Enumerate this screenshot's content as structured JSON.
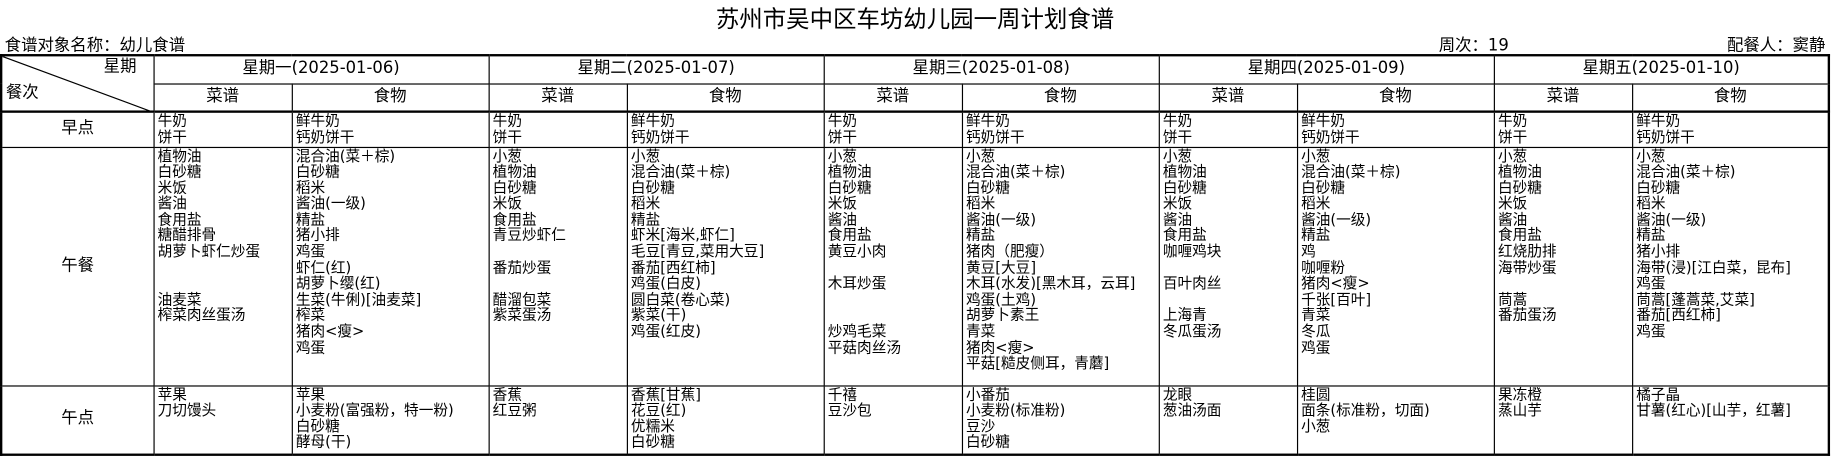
{
  "title": "苏州市吴中区车坊幼儿园一周计划食谱",
  "recipe_target": "食谱对象名称：幼儿食谱",
  "week_no": "周次：19",
  "planner": "配餐人：窦静",
  "corner": {
    "weekday": "星期",
    "meal": "餐次"
  },
  "sub_headers": {
    "menu": "菜谱",
    "food": "食物"
  },
  "meals": [
    "早点",
    "午餐",
    "午点"
  ],
  "days": [
    {
      "label": "星期一(2025-01-06)",
      "breakfast": {
        "menu": [
          "牛奶",
          "饼干"
        ],
        "food": [
          "鲜牛奶",
          "钙奶饼干"
        ]
      },
      "lunch": {
        "menu": [
          "植物油",
          "白砂糖",
          "米饭",
          "酱油",
          "食用盐",
          "糖醋排骨",
          "胡萝卜虾仁炒蛋",
          "",
          "",
          "油麦菜",
          "榨菜肉丝蛋汤"
        ],
        "food": [
          "混合油(菜＋棕)",
          "白砂糖",
          "稻米",
          "酱油(一级)",
          "精盐",
          "猪小排",
          "鸡蛋",
          "虾仁(红)",
          "胡萝卜缨(红)",
          "生菜(牛俐)[油麦菜]",
          "榨菜",
          "猪肉<瘦>",
          "鸡蛋"
        ]
      },
      "snack": {
        "menu": [
          "苹果",
          "刀切馒头"
        ],
        "food": [
          "苹果",
          "小麦粉(富强粉，特一粉)",
          "白砂糖",
          "酵母(干)"
        ]
      }
    },
    {
      "label": "星期二(2025-01-07)",
      "breakfast": {
        "menu": [
          "牛奶",
          "饼干"
        ],
        "food": [
          "鲜牛奶",
          "钙奶饼干"
        ]
      },
      "lunch": {
        "menu": [
          "小葱",
          "植物油",
          "白砂糖",
          "米饭",
          "食用盐",
          "青豆炒虾仁",
          "",
          "番茄炒蛋",
          "",
          "醋溜包菜",
          "紫菜蛋汤"
        ],
        "food": [
          "小葱",
          "混合油(菜＋棕)",
          "白砂糖",
          "稻米",
          "精盐",
          "虾米[海米,虾仁]",
          "毛豆[青豆,菜用大豆]",
          "番茄[西红柿]",
          "鸡蛋(白皮)",
          "圆白菜(卷心菜)",
          "紫菜(干)",
          "鸡蛋(红皮)"
        ]
      },
      "snack": {
        "menu": [
          "香蕉",
          "红豆粥"
        ],
        "food": [
          "香蕉[甘蕉]",
          "花豆(红)",
          "优糯米",
          "白砂糖"
        ]
      }
    },
    {
      "label": "星期三(2025-01-08)",
      "breakfast": {
        "menu": [
          "牛奶",
          "饼干"
        ],
        "food": [
          "鲜牛奶",
          "钙奶饼干"
        ]
      },
      "lunch": {
        "menu": [
          "小葱",
          "植物油",
          "白砂糖",
          "米饭",
          "酱油",
          "食用盐",
          "黄豆小肉",
          "",
          "木耳炒蛋",
          "",
          "",
          "炒鸡毛菜",
          "平菇肉丝汤"
        ],
        "food": [
          "小葱",
          "混合油(菜＋棕)",
          "白砂糖",
          "稻米",
          "酱油(一级)",
          "精盐",
          "猪肉（肥瘦）",
          "黄豆[大豆]",
          "木耳(水发)[黑木耳，云耳]",
          "鸡蛋(土鸡)",
          "胡萝卜素王",
          "青菜",
          "猪肉<瘦>",
          "平菇[糙皮侧耳，青蘑]"
        ]
      },
      "snack": {
        "menu": [
          "千禧",
          "豆沙包"
        ],
        "food": [
          "小番茄",
          "小麦粉(标准粉)",
          "豆沙",
          "白砂糖"
        ]
      }
    },
    {
      "label": "星期四(2025-01-09)",
      "breakfast": {
        "menu": [
          "牛奶",
          "饼干"
        ],
        "food": [
          "鲜牛奶",
          "钙奶饼干"
        ]
      },
      "lunch": {
        "menu": [
          "小葱",
          "植物油",
          "白砂糖",
          "米饭",
          "酱油",
          "食用盐",
          "咖喱鸡块",
          "",
          "百叶肉丝",
          "",
          "上海青",
          "冬瓜蛋汤"
        ],
        "food": [
          "小葱",
          "混合油(菜＋棕)",
          "白砂糖",
          "稻米",
          "酱油(一级)",
          "精盐",
          "鸡",
          "咖喱粉",
          "猪肉<瘦>",
          "千张[百叶]",
          "青菜",
          "冬瓜",
          "鸡蛋"
        ]
      },
      "snack": {
        "menu": [
          "龙眼",
          "葱油汤面"
        ],
        "food": [
          "桂圆",
          "面条(标准粉，切面)",
          "小葱"
        ]
      }
    },
    {
      "label": "星期五(2025-01-10)",
      "breakfast": {
        "menu": [
          "牛奶",
          "饼干"
        ],
        "food": [
          "鲜牛奶",
          "钙奶饼干"
        ]
      },
      "lunch": {
        "menu": [
          "小葱",
          "植物油",
          "白砂糖",
          "米饭",
          "酱油",
          "食用盐",
          "红烧肋排",
          "海带炒蛋",
          "",
          "茼蒿",
          "番茄蛋汤"
        ],
        "food": [
          "小葱",
          "混合油(菜＋棕)",
          "白砂糖",
          "稻米",
          "酱油(一级)",
          "精盐",
          "猪小排",
          "海带(浸)[江白菜，昆布]",
          "鸡蛋",
          "茼蒿[蓬蒿菜,艾菜]",
          "番茄[西红柿]",
          "鸡蛋"
        ]
      },
      "snack": {
        "menu": [
          "果冻橙",
          "蒸山芋"
        ],
        "food": [
          "橘子晶",
          "甘薯(红心)[山芋，红薯]"
        ]
      }
    }
  ]
}
